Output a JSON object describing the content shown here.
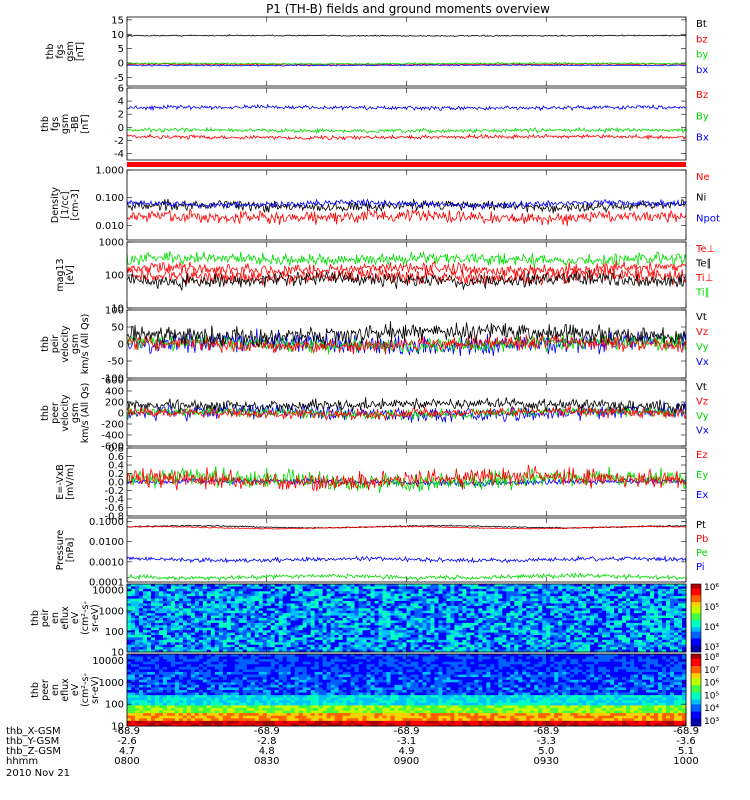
{
  "title": "P1 (TH-B) fields and ground moments overview",
  "date": "2010 Nov 21",
  "time_ticks": [
    "0800",
    "0830",
    "0900",
    "0930",
    "1000"
  ],
  "ephemeris": [
    {
      "label": "thb_X-GSM",
      "values": [
        "-68.9",
        "-68.9",
        "-68.9",
        "-68.9",
        "-68.9"
      ]
    },
    {
      "label": "thb_Y-GSM",
      "values": [
        "-2.6",
        "-2.8",
        "-3.1",
        "-3.3",
        "-3.6"
      ]
    },
    {
      "label": "thb_Z-GSM",
      "values": [
        "4.7",
        "4.8",
        "4.9",
        "5.0",
        "5.1"
      ]
    },
    {
      "label": "hhmm",
      "values": [
        "0800",
        "0830",
        "0900",
        "0930",
        "1000"
      ]
    }
  ],
  "colors": {
    "black": "#000000",
    "red": "#ff0000",
    "green": "#00dd00",
    "blue": "#0000ff"
  },
  "chart_data": [
    {
      "type": "line",
      "ylabel": [
        "thb",
        "fgs",
        "gsm",
        "[nT]"
      ],
      "ylim": [
        -8,
        16
      ],
      "yticks": [
        "15",
        "10",
        "5",
        "0",
        "-5"
      ],
      "yticks_values": [
        15,
        10,
        5,
        0,
        -5
      ],
      "legend": [
        {
          "name": "Bt",
          "color": "#000000"
        },
        {
          "name": "bz",
          "color": "#ff0000"
        },
        {
          "name": "by",
          "color": "#00dd00"
        },
        {
          "name": "bx",
          "color": "#0000ff"
        }
      ],
      "series": [
        {
          "name": "Bt",
          "base": 9.5,
          "noise": 0.15
        },
        {
          "name": "bz",
          "base": -0.5,
          "noise": 0.2
        },
        {
          "name": "by",
          "base": -0.2,
          "noise": 0.2
        },
        {
          "name": "bx",
          "base": -0.8,
          "noise": 0.15
        }
      ]
    },
    {
      "type": "line",
      "ylabel": [
        "thb",
        "fgs",
        "gsm",
        "-BB",
        "[nT]"
      ],
      "ylim": [
        -5,
        6
      ],
      "yticks": [
        "6",
        "4",
        "2",
        "0",
        "-2",
        "-4"
      ],
      "yticks_values": [
        6,
        4,
        2,
        0,
        -2,
        -4
      ],
      "legend": [
        {
          "name": "Bz",
          "color": "#ff0000"
        },
        {
          "name": "By",
          "color": "#00dd00"
        },
        {
          "name": "Bx",
          "color": "#0000ff"
        }
      ],
      "series": [
        {
          "name": "Bx",
          "base": 3,
          "noise": 0.2
        },
        {
          "name": "By",
          "base": -0.5,
          "noise": 0.2
        },
        {
          "name": "Bz",
          "base": -1.5,
          "noise": 0.2
        }
      ]
    },
    {
      "type": "line",
      "ylabel": [
        "Density",
        "[1/cc]",
        "[cm-3]"
      ],
      "ylim": [
        0.003,
        1
      ],
      "scale": "log",
      "yticks": [
        "1.000",
        "0.100",
        "0.010"
      ],
      "yticks_values": [
        1,
        0.1,
        0.01
      ],
      "legend": [
        {
          "name": "Ne",
          "color": "#ff0000"
        },
        {
          "name": "Ni",
          "color": "#000000"
        },
        {
          "name": "Npot",
          "color": "#0000ff"
        }
      ],
      "series": [
        {
          "name": "Ni",
          "base": 0.05,
          "noise": 0.25
        },
        {
          "name": "Ne",
          "base": 0.02,
          "noise": 0.3
        },
        {
          "name": "Npot",
          "base": 0.06,
          "noise": 0.15
        }
      ]
    },
    {
      "type": "line",
      "ylabel": [
        "mag13",
        "[eV]"
      ],
      "ylim": [
        10,
        1000
      ],
      "scale": "log",
      "yticks": [
        "1000",
        "100",
        "10"
      ],
      "yticks_values": [
        1000,
        100,
        10
      ],
      "legend": [
        {
          "name": "Te⊥",
          "color": "#ff0000"
        },
        {
          "name": "Te∥",
          "color": "#000000"
        },
        {
          "name": "Ti⊥",
          "color": "#ff0000"
        },
        {
          "name": "Ti∥",
          "color": "#00dd00"
        }
      ],
      "series": [
        {
          "name": "Ti∥",
          "base": 300,
          "noise": 0.25
        },
        {
          "name": "Ti⊥",
          "base": 150,
          "noise": 0.25
        },
        {
          "name": "Te⊥",
          "base": 90,
          "noise": 0.3
        },
        {
          "name": "Te∥",
          "base": 70,
          "noise": 0.3
        }
      ]
    },
    {
      "type": "line",
      "ylabel": [
        "thb",
        "peir",
        "velocity",
        "gsm",
        "km/s (All Qs)"
      ],
      "ylim": [
        -100,
        100
      ],
      "yticks": [
        "100",
        "50",
        "0",
        "-50",
        "-100"
      ],
      "yticks_values": [
        100,
        50,
        0,
        -50,
        -100
      ],
      "legend": [
        {
          "name": "Vt",
          "color": "#000000"
        },
        {
          "name": "Vz",
          "color": "#ff0000"
        },
        {
          "name": "Vy",
          "color": "#00dd00"
        },
        {
          "name": "Vx",
          "color": "#0000ff"
        }
      ],
      "series": [
        {
          "name": "Vx",
          "base": 0,
          "noise": 20
        },
        {
          "name": "Vy",
          "base": 0,
          "noise": 15
        },
        {
          "name": "Vz",
          "base": 0,
          "noise": 15
        },
        {
          "name": "Vt",
          "base": 30,
          "noise": 18
        }
      ]
    },
    {
      "type": "line",
      "ylabel": [
        "thb",
        "peer",
        "velocity",
        "gsm",
        "km/s (All Qs)"
      ],
      "ylim": [
        -600,
        600
      ],
      "yticks": [
        "600",
        "400",
        "200",
        "0",
        "-200",
        "-400",
        "-600"
      ],
      "yticks_values": [
        600,
        400,
        200,
        0,
        -200,
        -400,
        -600
      ],
      "legend": [
        {
          "name": "Vt",
          "color": "#000000"
        },
        {
          "name": "Vz",
          "color": "#ff0000"
        },
        {
          "name": "Vy",
          "color": "#00dd00"
        },
        {
          "name": "Vx",
          "color": "#0000ff"
        }
      ],
      "series": [
        {
          "name": "Vx",
          "base": 0,
          "noise": 90
        },
        {
          "name": "Vy",
          "base": 0,
          "noise": 60
        },
        {
          "name": "Vz",
          "base": 0,
          "noise": 60
        },
        {
          "name": "Vt",
          "base": 150,
          "noise": 70
        }
      ]
    },
    {
      "type": "line",
      "ylabel": [
        "E=-VxB",
        "[mV/m]"
      ],
      "ylim": [
        -0.8,
        0.8
      ],
      "yticks": [
        "0.8",
        "0.6",
        "0.4",
        "0.2",
        "0.0",
        "-0.2",
        "-0.4",
        "-0.6",
        "-0.8"
      ],
      "yticks_values": [
        0.8,
        0.6,
        0.4,
        0.2,
        0,
        -0.2,
        -0.4,
        -0.6,
        -0.8
      ],
      "legend": [
        {
          "name": "Ez",
          "color": "#ff0000"
        },
        {
          "name": "Ey",
          "color": "#00dd00"
        },
        {
          "name": "Ex",
          "color": "#0000ff"
        }
      ],
      "series": [
        {
          "name": "Ex",
          "base": 0,
          "noise": 0.05
        },
        {
          "name": "Ey",
          "base": 0.05,
          "noise": 0.15
        },
        {
          "name": "Ez",
          "base": 0.05,
          "noise": 0.15
        }
      ]
    },
    {
      "type": "line",
      "ylabel": [
        "Pressure",
        "[nPa]"
      ],
      "ylim": [
        0.0001,
        0.15
      ],
      "scale": "log",
      "yticks": [
        "0.1000",
        "0.0100",
        "0.0010",
        "0.0001"
      ],
      "yticks_values": [
        0.1,
        0.01,
        0.001,
        0.0001
      ],
      "legend": [
        {
          "name": "Pt",
          "color": "#000000"
        },
        {
          "name": "Pb",
          "color": "#ff0000"
        },
        {
          "name": "Pe",
          "color": "#00dd00"
        },
        {
          "name": "Pi",
          "color": "#0000ff"
        }
      ],
      "series": [
        {
          "name": "Pt",
          "base": 0.055,
          "noise": 0.04
        },
        {
          "name": "Pb",
          "base": 0.05,
          "noise": 0.04
        },
        {
          "name": "Pi",
          "base": 0.0013,
          "noise": 0.15
        },
        {
          "name": "Pe",
          "base": 0.00018,
          "noise": 0.15
        }
      ]
    },
    {
      "type": "heatmap",
      "ylabel": [
        "thb",
        "peir",
        "en",
        "eflux",
        "eV",
        "(cm²-s-",
        "sr-eV)"
      ],
      "ylim": [
        10,
        20000
      ],
      "scale": "log",
      "yticks": [
        "10000",
        "1000",
        "100",
        "10"
      ],
      "yticks_values": [
        10000,
        1000,
        100,
        10
      ],
      "colorbar": [
        "10⁶",
        "10⁵",
        "10⁴",
        "10³"
      ]
    },
    {
      "type": "heatmap",
      "ylabel": [
        "thb",
        "peer",
        "en",
        "eflux",
        "eV",
        "(cm²-s-",
        "sr-eV)"
      ],
      "ylim": [
        10,
        20000
      ],
      "scale": "log",
      "yticks": [
        "10000",
        "1000",
        "100",
        "10"
      ],
      "yticks_values": [
        10000,
        1000,
        100,
        10
      ],
      "colorbar": [
        "10⁸",
        "10⁷",
        "10⁶",
        "10⁵",
        "10⁴",
        "10³"
      ]
    }
  ]
}
